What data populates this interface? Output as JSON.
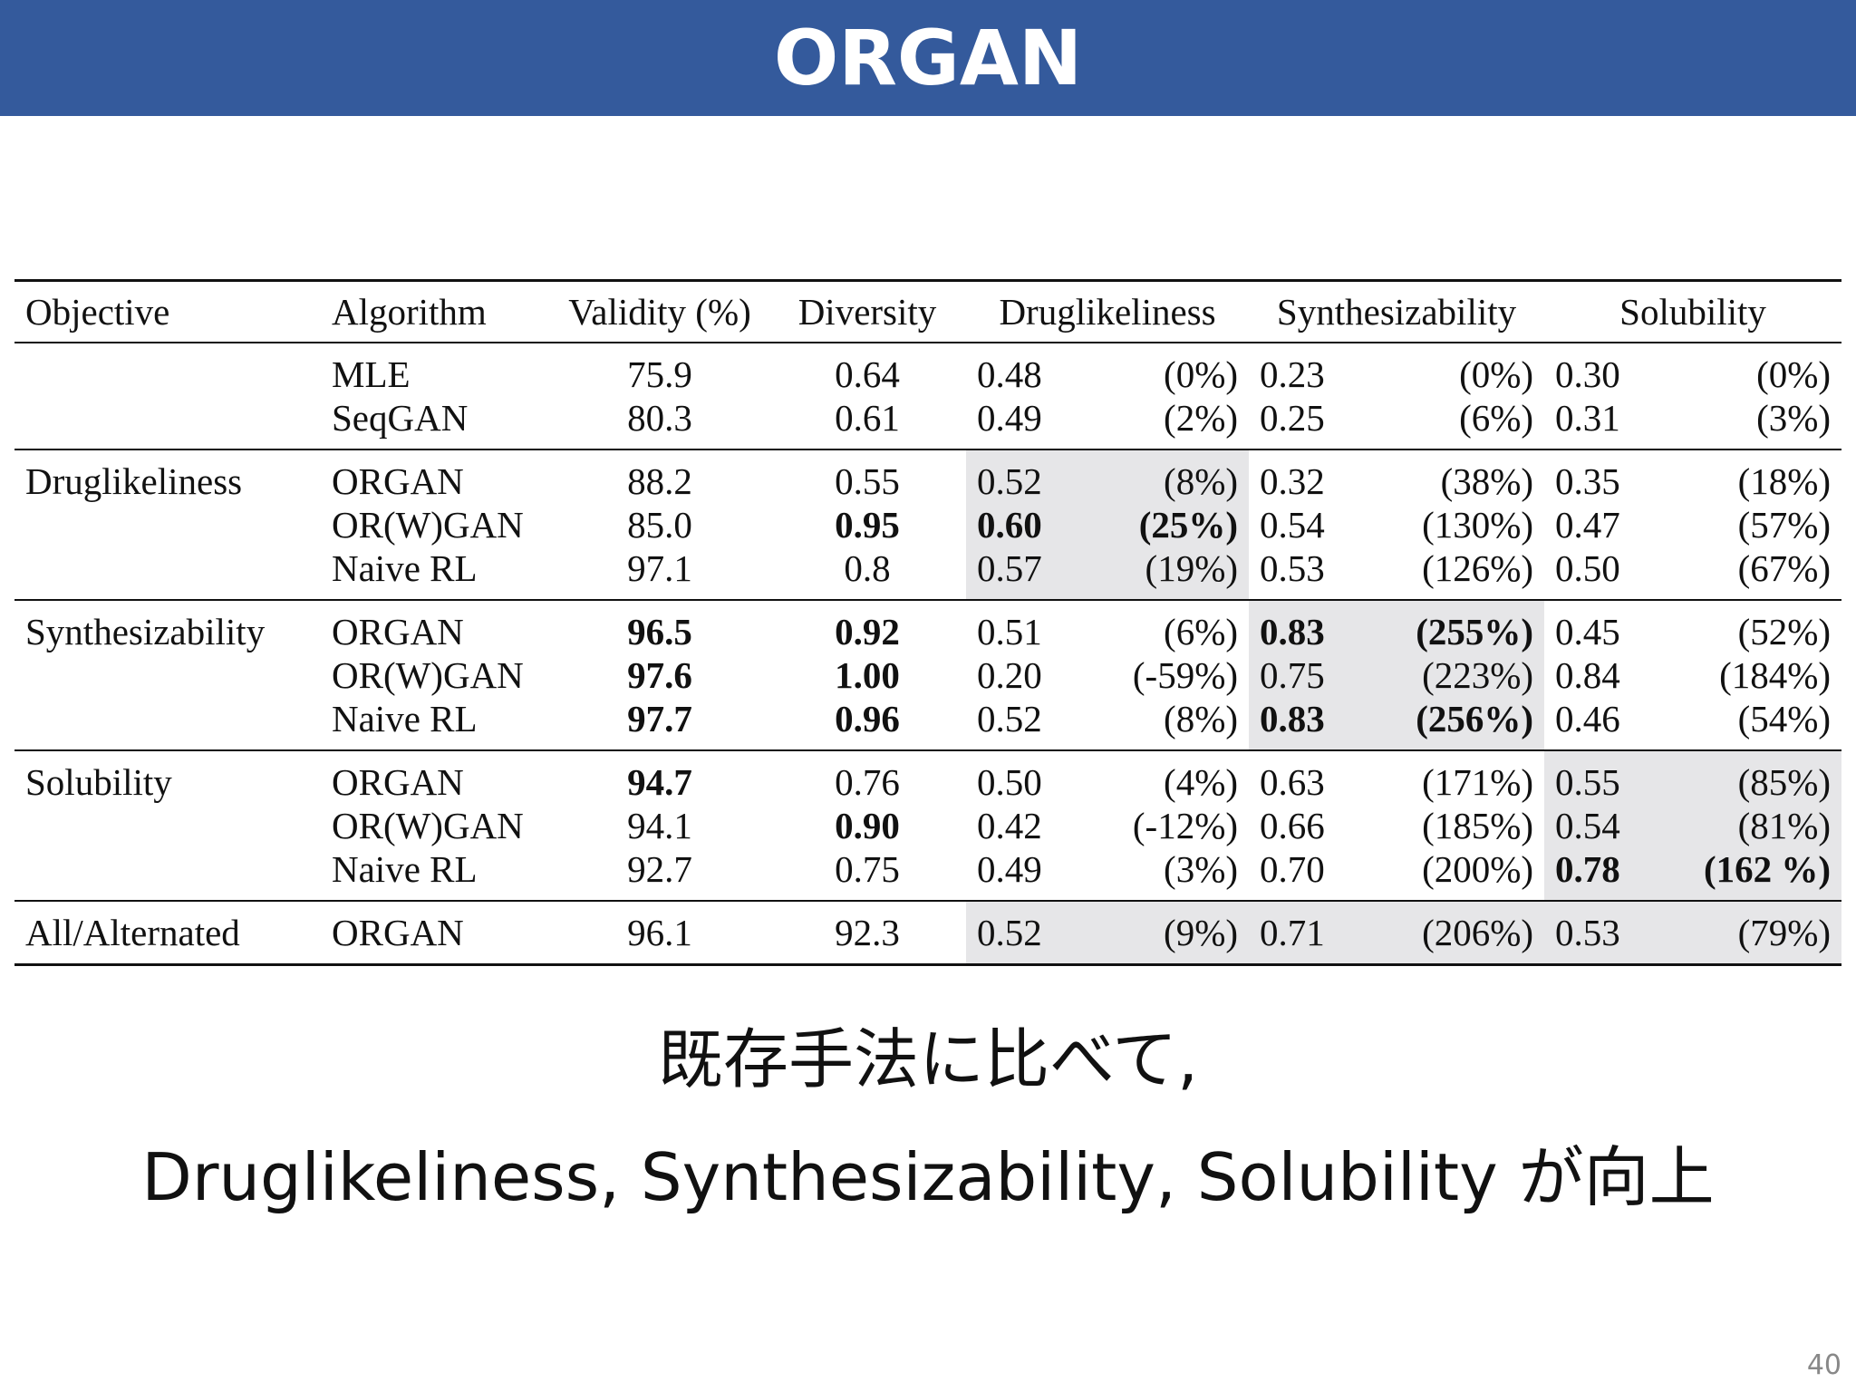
{
  "slide": {
    "title": "ORGAN",
    "page_number": "40",
    "caption_line1": "既存手法に比べて,",
    "caption_line2": "Druglikeliness, Synthesizability, Solubility が向上"
  },
  "table": {
    "headers": [
      "Objective",
      "Algorithm",
      "Validity (%)",
      "Diversity",
      "Druglikeliness",
      "Synthesizability",
      "Solubility"
    ],
    "groups": [
      {
        "objective": "",
        "rows": [
          {
            "algorithm": "MLE",
            "validity": "75.9",
            "diversity": "0.64",
            "drug_val": "0.48",
            "drug_pct": "(0%)",
            "synth_val": "0.23",
            "synth_pct": "(0%)",
            "sol_val": "0.30",
            "sol_pct": "(0%)"
          },
          {
            "algorithm": "SeqGAN",
            "validity": "80.3",
            "diversity": "0.61",
            "drug_val": "0.49",
            "drug_pct": "(2%)",
            "synth_val": "0.25",
            "synth_pct": "(6%)",
            "sol_val": "0.31",
            "sol_pct": "(3%)"
          }
        ]
      },
      {
        "objective": "Druglikeliness",
        "rows": [
          {
            "algorithm": "ORGAN",
            "validity": "88.2",
            "diversity": "0.55",
            "drug_val": "0.52",
            "drug_pct": "(8%)",
            "synth_val": "0.32",
            "synth_pct": "(38%)",
            "sol_val": "0.35",
            "sol_pct": "(18%)"
          },
          {
            "algorithm": "OR(W)GAN",
            "validity": "85.0",
            "diversity": "0.95",
            "drug_val": "0.60",
            "drug_pct": "(25%)",
            "synth_val": "0.54",
            "synth_pct": "(130%)",
            "sol_val": "0.47",
            "sol_pct": "(57%)"
          },
          {
            "algorithm": "Naive RL",
            "validity": "97.1",
            "diversity": "0.8",
            "drug_val": "0.57",
            "drug_pct": "(19%)",
            "synth_val": "0.53",
            "synth_pct": "(126%)",
            "sol_val": "0.50",
            "sol_pct": "(67%)"
          }
        ]
      },
      {
        "objective": "Synthesizability",
        "rows": [
          {
            "algorithm": "ORGAN",
            "validity": "96.5",
            "diversity": "0.92",
            "drug_val": "0.51",
            "drug_pct": "(6%)",
            "synth_val": "0.83",
            "synth_pct": "(255%)",
            "sol_val": "0.45",
            "sol_pct": "(52%)"
          },
          {
            "algorithm": "OR(W)GAN",
            "validity": "97.6",
            "diversity": "1.00",
            "drug_val": "0.20",
            "drug_pct": "(-59%)",
            "synth_val": "0.75",
            "synth_pct": "(223%)",
            "sol_val": "0.84",
            "sol_pct": "(184%)"
          },
          {
            "algorithm": "Naive RL",
            "validity": "97.7",
            "diversity": "0.96",
            "drug_val": "0.52",
            "drug_pct": "(8%)",
            "synth_val": "0.83",
            "synth_pct": "(256%)",
            "sol_val": "0.46",
            "sol_pct": "(54%)"
          }
        ]
      },
      {
        "objective": "Solubility",
        "rows": [
          {
            "algorithm": "ORGAN",
            "validity": "94.7",
            "diversity": "0.76",
            "drug_val": "0.50",
            "drug_pct": "(4%)",
            "synth_val": "0.63",
            "synth_pct": "(171%)",
            "sol_val": "0.55",
            "sol_pct": "(85%)"
          },
          {
            "algorithm": "OR(W)GAN",
            "validity": "94.1",
            "diversity": "0.90",
            "drug_val": "0.42",
            "drug_pct": "(-12%)",
            "synth_val": "0.66",
            "synth_pct": "(185%)",
            "sol_val": "0.54",
            "sol_pct": "(81%)"
          },
          {
            "algorithm": "Naive RL",
            "validity": "92.7",
            "diversity": "0.75",
            "drug_val": "0.49",
            "drug_pct": "(3%)",
            "synth_val": "0.70",
            "synth_pct": "(200%)",
            "sol_val": "0.78",
            "sol_pct": "(162 %)"
          }
        ]
      },
      {
        "objective": "All/Alternated",
        "rows": [
          {
            "algorithm": "ORGAN",
            "validity": "96.1",
            "diversity": "92.3",
            "drug_val": "0.52",
            "drug_pct": "(9%)",
            "synth_val": "0.71",
            "synth_pct": "(206%)",
            "sol_val": "0.53",
            "sol_pct": "(79%)"
          }
        ]
      }
    ]
  }
}
